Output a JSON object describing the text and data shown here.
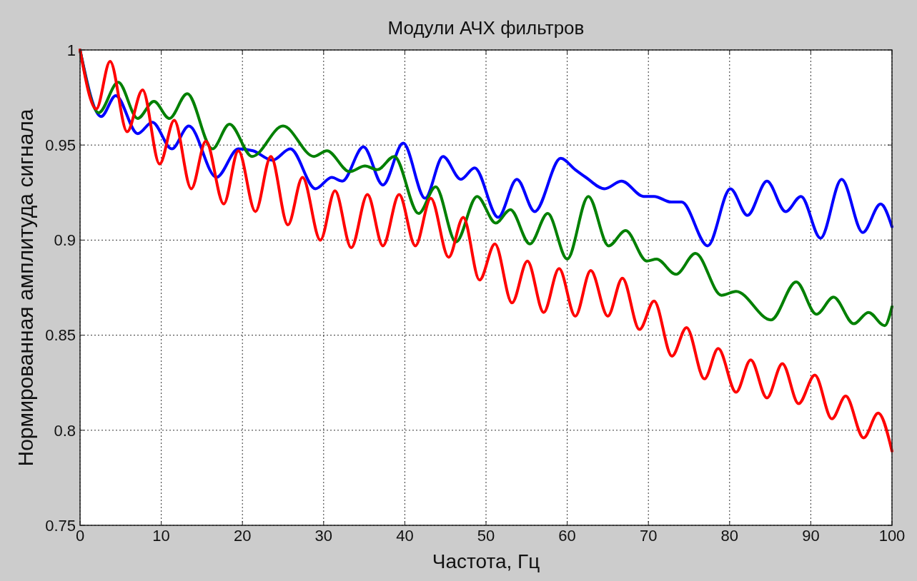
{
  "chart_data": {
    "type": "line",
    "title": "Модули АЧХ фильтров",
    "xlabel": "Частота, Гц",
    "ylabel": "Нормированная амплитуда сигнала",
    "xlim": [
      0,
      100
    ],
    "xticks": [
      0,
      10,
      20,
      30,
      40,
      50,
      60,
      70,
      80,
      90,
      100
    ],
    "ylim": [
      0.75,
      1
    ],
    "yticks": [
      0.75,
      0.8,
      0.85,
      0.9,
      0.95,
      1
    ],
    "grid": true,
    "line_style": "solid",
    "marker": "none",
    "series": [
      {
        "color": "#0000ff",
        "x": [
          0,
          2.6,
          4.4,
          7.1,
          8.9,
          11.3,
          13.4,
          16.8,
          19.5,
          21.3,
          23.7,
          25.9,
          29.0,
          31.0,
          32.3,
          34.9,
          37.3,
          39.8,
          42.5,
          44.7,
          46.9,
          48.6,
          51.5,
          53.8,
          56.0,
          59.2,
          61.0,
          62.3,
          64.6,
          66.7,
          69.4,
          70.7,
          72.8,
          74.1,
          77.3,
          80.1,
          82.2,
          84.6,
          86.9,
          88.8,
          91.2,
          93.8,
          96.4,
          98.6,
          100
        ],
        "values": [
          1,
          0.965,
          0.976,
          0.956,
          0.962,
          0.948,
          0.96,
          0.933,
          0.948,
          0.947,
          0.942,
          0.948,
          0.927,
          0.933,
          0.931,
          0.949,
          0.929,
          0.951,
          0.922,
          0.944,
          0.932,
          0.938,
          0.912,
          0.932,
          0.915,
          0.943,
          0.937,
          0.933,
          0.927,
          0.931,
          0.923,
          0.923,
          0.92,
          0.92,
          0.897,
          0.927,
          0.913,
          0.931,
          0.915,
          0.923,
          0.901,
          0.932,
          0.904,
          0.919,
          0.907
        ]
      },
      {
        "color": "#008000",
        "x": [
          0,
          2.3,
          4.7,
          7.1,
          9.1,
          11.0,
          13.2,
          16.3,
          18.4,
          21.2,
          25.0,
          28.8,
          30.4,
          33.2,
          35.1,
          36.6,
          38.7,
          41.7,
          43.8,
          46.3,
          48.9,
          51.2,
          53.0,
          55.4,
          57.6,
          60.0,
          62.6,
          65.1,
          67.2,
          69.8,
          71.0,
          73.4,
          75.8,
          79.0,
          80.8,
          85.1,
          88.2,
          90.7,
          92.8,
          95.3,
          97.1,
          99.1,
          100
        ],
        "values": [
          1,
          0.967,
          0.983,
          0.964,
          0.973,
          0.964,
          0.977,
          0.948,
          0.961,
          0.944,
          0.96,
          0.944,
          0.947,
          0.936,
          0.939,
          0.937,
          0.944,
          0.914,
          0.928,
          0.899,
          0.923,
          0.909,
          0.916,
          0.898,
          0.914,
          0.89,
          0.923,
          0.897,
          0.905,
          0.889,
          0.89,
          0.882,
          0.893,
          0.871,
          0.873,
          0.858,
          0.878,
          0.861,
          0.87,
          0.856,
          0.862,
          0.855,
          0.865
        ]
      },
      {
        "color": "#ff0000",
        "x": [
          0,
          2.0,
          3.7,
          5.8,
          7.7,
          9.8,
          11.6,
          13.7,
          15.5,
          17.7,
          19.5,
          21.6,
          23.5,
          25.6,
          27.4,
          29.6,
          31.4,
          33.4,
          35.4,
          37.3,
          39.3,
          41.3,
          43.2,
          45.4,
          47.2,
          49.2,
          51.1,
          53.2,
          55.1,
          57.1,
          59.0,
          61.0,
          62.9,
          65.0,
          66.8,
          68.9,
          70.7,
          72.9,
          74.7,
          76.9,
          78.6,
          80.8,
          82.6,
          84.6,
          86.5,
          88.5,
          90.5,
          92.6,
          94.3,
          96.5,
          98.3,
          100
        ],
        "values": [
          1,
          0.969,
          0.994,
          0.957,
          0.979,
          0.94,
          0.963,
          0.927,
          0.952,
          0.919,
          0.947,
          0.915,
          0.944,
          0.908,
          0.933,
          0.9,
          0.926,
          0.896,
          0.924,
          0.897,
          0.924,
          0.897,
          0.922,
          0.891,
          0.912,
          0.879,
          0.898,
          0.867,
          0.889,
          0.862,
          0.885,
          0.86,
          0.884,
          0.86,
          0.88,
          0.853,
          0.868,
          0.839,
          0.854,
          0.827,
          0.843,
          0.82,
          0.837,
          0.817,
          0.835,
          0.814,
          0.829,
          0.806,
          0.818,
          0.796,
          0.809,
          0.789
        ]
      }
    ]
  }
}
